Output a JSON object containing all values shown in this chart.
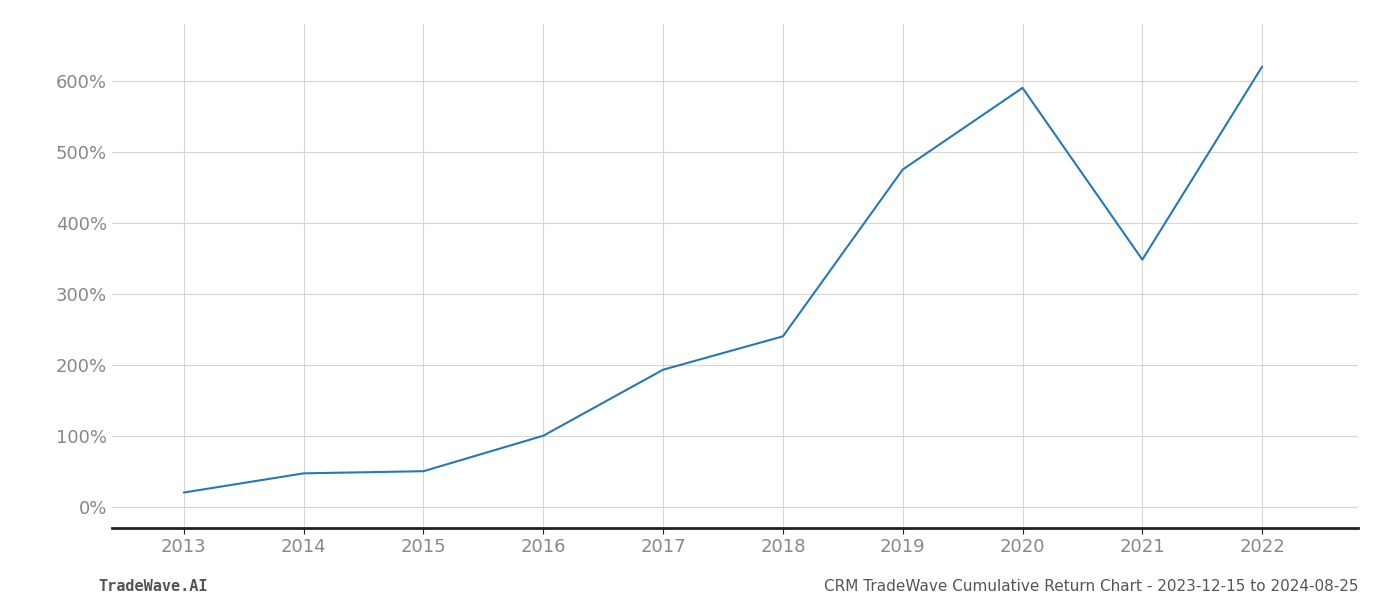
{
  "x_years": [
    2013,
    2014,
    2015,
    2016,
    2017,
    2018,
    2019,
    2020,
    2021,
    2022
  ],
  "y_values": [
    20,
    47,
    50,
    100,
    193,
    240,
    475,
    590,
    348,
    620
  ],
  "line_color": "#2878b5",
  "line_width": 1.5,
  "background_color": "#ffffff",
  "grid_color": "#cccccc",
  "title": "CRM TradeWave Cumulative Return Chart - 2023-12-15 to 2024-08-25",
  "footer_left": "TradeWave.AI",
  "ytick_labels": [
    "0%",
    "100%",
    "200%",
    "300%",
    "400%",
    "500%",
    "600%"
  ],
  "ytick_values": [
    0,
    100,
    200,
    300,
    400,
    500,
    600
  ],
  "ylim": [
    -30,
    680
  ],
  "xlim_start": 2012.4,
  "xlim_end": 2022.8,
  "tick_color": "#aaaaaa",
  "spine_color": "#222222",
  "label_color": "#888888",
  "footer_color": "#555555",
  "label_fontsize": 13,
  "footer_fontsize": 11
}
